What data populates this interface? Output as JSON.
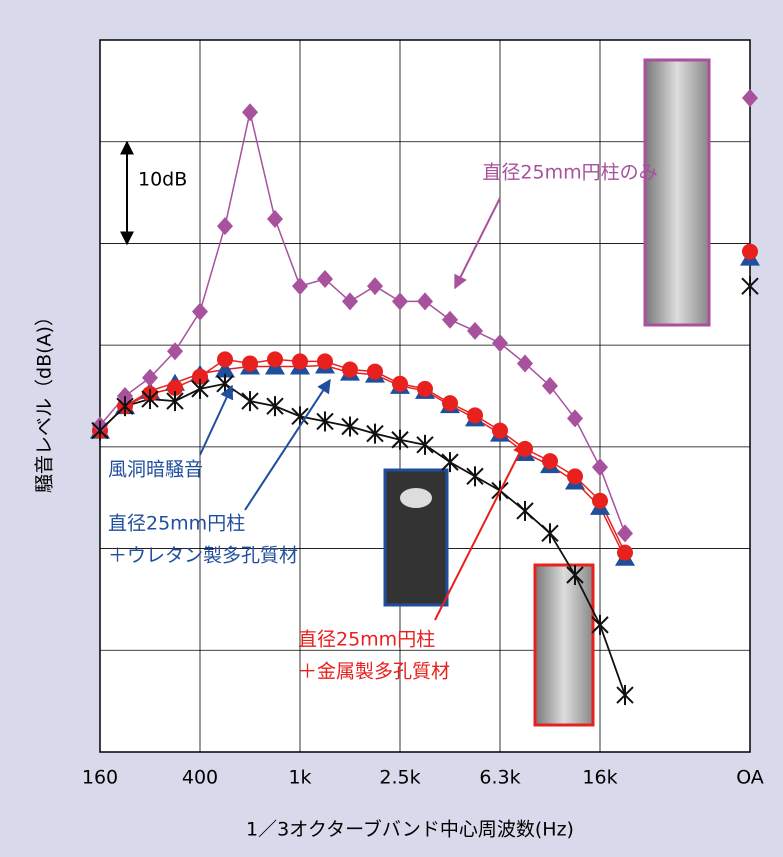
{
  "chart_data": {
    "type": "line",
    "xlabel": "1／3オクターブバンド中心周波数(Hz)",
    "ylabel": "騒音レベル（dB(A)）",
    "categories": [
      "160",
      null,
      null,
      null,
      "400",
      null,
      null,
      null,
      "1k",
      null,
      null,
      null,
      "2.5k",
      null,
      null,
      null,
      "6.3k",
      null,
      null,
      null,
      "16k",
      null,
      null,
      null,
      null,
      null,
      "OA"
    ],
    "ylim": [
      0,
      70
    ],
    "yticks": [
      0,
      10,
      20,
      30,
      40,
      50,
      60,
      70
    ],
    "grid": true,
    "series": [
      {
        "name": [
          "直径25mm円柱のみ"
        ],
        "color": "#a8519d",
        "marker": "diamond",
        "values": [
          32.1,
          35.0,
          36.8,
          39.4,
          43.3,
          51.7,
          62.9,
          52.4,
          45.8,
          46.5,
          44.3,
          45.8,
          44.3,
          44.3,
          42.5,
          41.4,
          40.2,
          38.2,
          36.0,
          32.8,
          28.0,
          21.5,
          null,
          null,
          null,
          null,
          64.3
        ]
      },
      {
        "name": [
          "直径25mm円柱",
          "＋ウレタン製多孔質材"
        ],
        "color": "#1f4f9c",
        "marker": "triangle",
        "values": [
          31.6,
          34.0,
          35.5,
          36.3,
          37.2,
          37.6,
          37.9,
          37.9,
          37.9,
          38.0,
          37.3,
          37.1,
          36.0,
          35.5,
          34.1,
          32.8,
          31.3,
          29.4,
          28.2,
          26.6,
          24.1,
          19.1,
          null,
          null,
          null,
          null,
          48.6
        ]
      },
      {
        "name": [
          "直径25mm円柱",
          "＋金属製多孔質材"
        ],
        "color": "#e8201e",
        "marker": "circle",
        "values": [
          31.6,
          34.0,
          35.2,
          35.8,
          36.9,
          38.6,
          38.2,
          38.6,
          38.4,
          38.4,
          37.6,
          37.4,
          36.2,
          35.7,
          34.3,
          33.1,
          31.6,
          29.8,
          28.6,
          27.1,
          24.7,
          19.6,
          null,
          null,
          null,
          null,
          49.2
        ]
      },
      {
        "name": [
          "風洞暗騒音"
        ],
        "color": "#111111",
        "marker": "asterisk",
        "values": [
          31.6,
          34.0,
          34.7,
          34.5,
          35.7,
          36.2,
          34.5,
          34.0,
          33.0,
          32.5,
          32.0,
          31.3,
          30.7,
          30.2,
          28.5,
          27.1,
          25.7,
          23.7,
          21.5,
          17.4,
          12.5,
          5.6,
          null,
          null,
          null,
          null,
          45.8
        ]
      }
    ],
    "annotations": [
      {
        "text": "10dB"
      }
    ]
  }
}
